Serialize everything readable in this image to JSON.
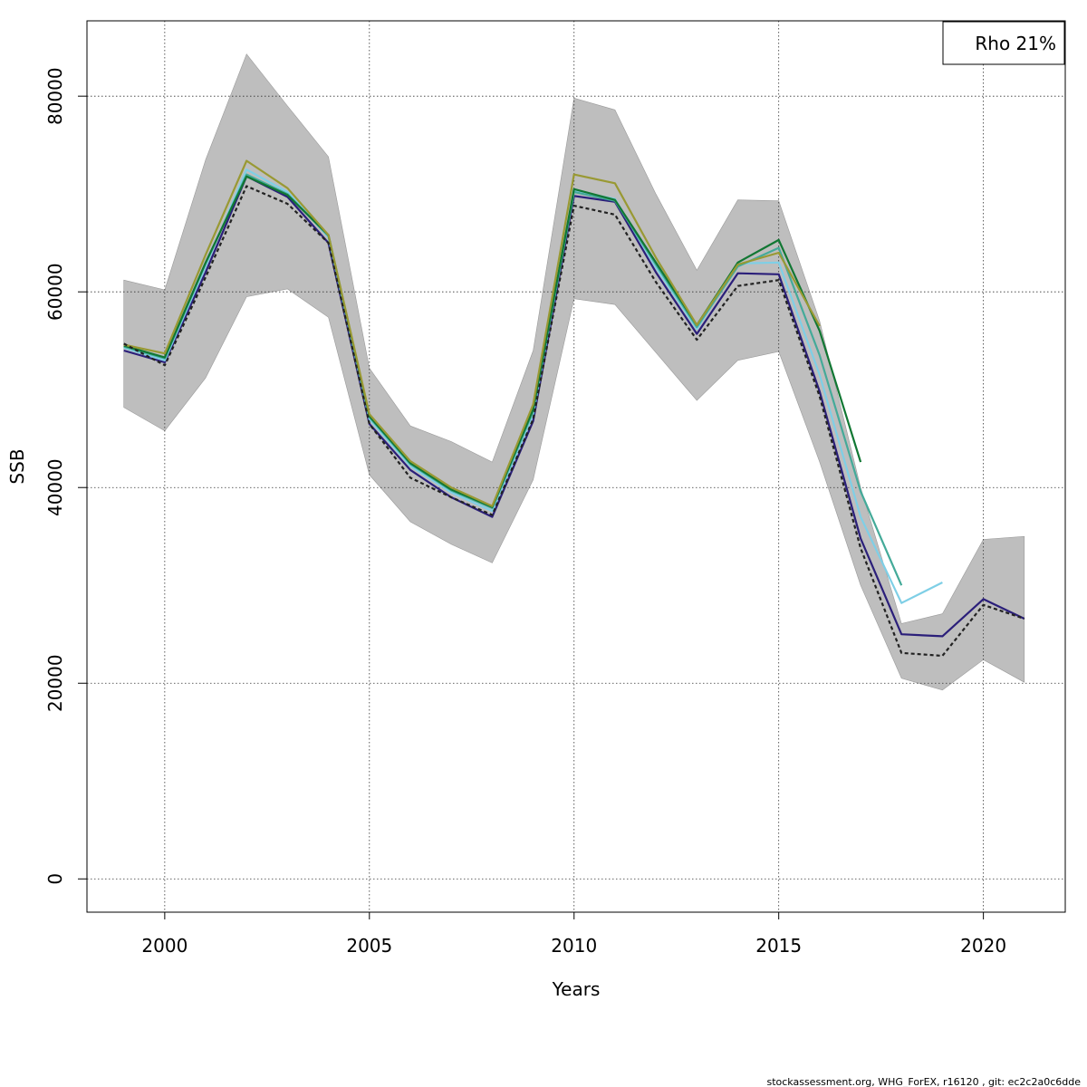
{
  "chart_data": {
    "type": "line",
    "xlabel": "Years",
    "ylabel": "SSB",
    "xlim": [
      1998.1,
      2022.0
    ],
    "ylim": [
      -3400,
      87700
    ],
    "x_ticks": [
      2000,
      2005,
      2010,
      2015,
      2020
    ],
    "x_tick_labels": [
      "2000",
      "2005",
      "2010",
      "2015",
      "2020"
    ],
    "y_ticks": [
      0,
      20000,
      40000,
      60000,
      80000
    ],
    "y_tick_labels": [
      "0",
      "20000",
      "40000",
      "60000",
      "80000"
    ],
    "grid": true,
    "legend": {
      "position": "top-right",
      "text": "Rho 21%"
    },
    "footer": "stockassessment.org, WHG_ForEX, r16120 , git: ec2c2a0c6dde",
    "confidence_band": {
      "color": "#bebebe",
      "x": [
        1999,
        2000,
        2001,
        2002,
        2003,
        2004,
        2005,
        2006,
        2007,
        2008,
        2009,
        2010,
        2011,
        2012,
        2013,
        2014,
        2015,
        2016,
        2017,
        2018,
        2019,
        2020,
        2021
      ],
      "upper": [
        61200,
        60200,
        73500,
        84300,
        79000,
        73800,
        52200,
        46300,
        44700,
        42600,
        54000,
        79800,
        78600,
        70000,
        62200,
        69400,
        69300,
        57000,
        40000,
        26100,
        27100,
        34700,
        35000
      ],
      "lower": [
        48200,
        45800,
        51200,
        59500,
        60300,
        57400,
        41300,
        36500,
        34200,
        32300,
        40800,
        59300,
        58700,
        53800,
        48900,
        53000,
        53900,
        42600,
        30000,
        20500,
        19300,
        22400,
        20100
      ]
    },
    "series": [
      {
        "color": "#2b1f7a",
        "width": 2.2,
        "dashed": false,
        "x": [
          1999,
          2000,
          2001,
          2002,
          2003,
          2004,
          2005,
          2006,
          2007,
          2008,
          2009,
          2010,
          2011,
          2012,
          2013,
          2014,
          2015,
          2016,
          2017,
          2018,
          2019,
          2020,
          2021
        ],
        "y": [
          54000,
          52800,
          62000,
          71800,
          69700,
          65000,
          46500,
          41800,
          39000,
          37000,
          46800,
          69800,
          69200,
          62000,
          55700,
          61900,
          61800,
          49800,
          34800,
          25000,
          24800,
          28600,
          26600
        ]
      },
      {
        "color": "#7fcfe6",
        "width": 2.2,
        "dashed": false,
        "x": [
          1999,
          2000,
          2001,
          2002,
          2003,
          2004,
          2005,
          2006,
          2007,
          2008,
          2009,
          2010,
          2011,
          2012,
          2013,
          2014,
          2015,
          2016,
          2017,
          2018,
          2019
        ],
        "y": [
          54300,
          53000,
          62600,
          72500,
          70200,
          65600,
          47000,
          42200,
          39500,
          37600,
          47500,
          70300,
          69500,
          62500,
          56200,
          62900,
          63000,
          51500,
          37000,
          28200,
          30300
        ]
      },
      {
        "color": "#44aa99",
        "width": 2.2,
        "dashed": false,
        "x": [
          1999,
          2000,
          2001,
          2002,
          2003,
          2004,
          2005,
          2006,
          2007,
          2008,
          2009,
          2010,
          2011,
          2012,
          2013,
          2014,
          2015,
          2016,
          2017,
          2018
        ],
        "y": [
          54400,
          53200,
          62900,
          72000,
          70000,
          65700,
          47200,
          42400,
          39700,
          37900,
          47800,
          70200,
          69300,
          62800,
          56400,
          62600,
          64500,
          53500,
          39600,
          30000
        ]
      },
      {
        "color": "#117733",
        "width": 2.2,
        "dashed": false,
        "x": [
          1999,
          2000,
          2001,
          2002,
          2003,
          2004,
          2005,
          2006,
          2007,
          2008,
          2009,
          2010,
          2011,
          2012,
          2013,
          2014,
          2015,
          2016,
          2017
        ],
        "y": [
          54500,
          53300,
          63000,
          71800,
          69900,
          65800,
          47300,
          42500,
          39800,
          38000,
          48000,
          70500,
          69400,
          63000,
          56600,
          63000,
          65300,
          56000,
          42600
        ]
      },
      {
        "color": "#999933",
        "width": 2.2,
        "dashed": false,
        "x": [
          1999,
          2000,
          2001,
          2002,
          2003,
          2004,
          2005,
          2006,
          2007,
          2008,
          2009,
          2010,
          2011,
          2012,
          2013,
          2014,
          2015,
          2016
        ],
        "y": [
          54600,
          53700,
          63800,
          73400,
          70600,
          65800,
          47500,
          42700,
          40000,
          38100,
          48500,
          72000,
          71100,
          63500,
          56600,
          62800,
          64000,
          56500
        ]
      },
      {
        "color": "#222222",
        "width": 2.2,
        "dashed": true,
        "x": [
          1999,
          2000,
          2001,
          2002,
          2003,
          2004,
          2005,
          2006,
          2007,
          2008,
          2009,
          2010,
          2011,
          2012,
          2013,
          2014,
          2015,
          2016,
          2017,
          2018,
          2019,
          2020,
          2021
        ],
        "y": [
          54700,
          52500,
          61500,
          70800,
          69000,
          65000,
          46500,
          41000,
          39000,
          37200,
          47000,
          68800,
          67900,
          61000,
          55100,
          60600,
          61200,
          49300,
          33800,
          23100,
          22800,
          28000,
          26600
        ]
      }
    ]
  }
}
